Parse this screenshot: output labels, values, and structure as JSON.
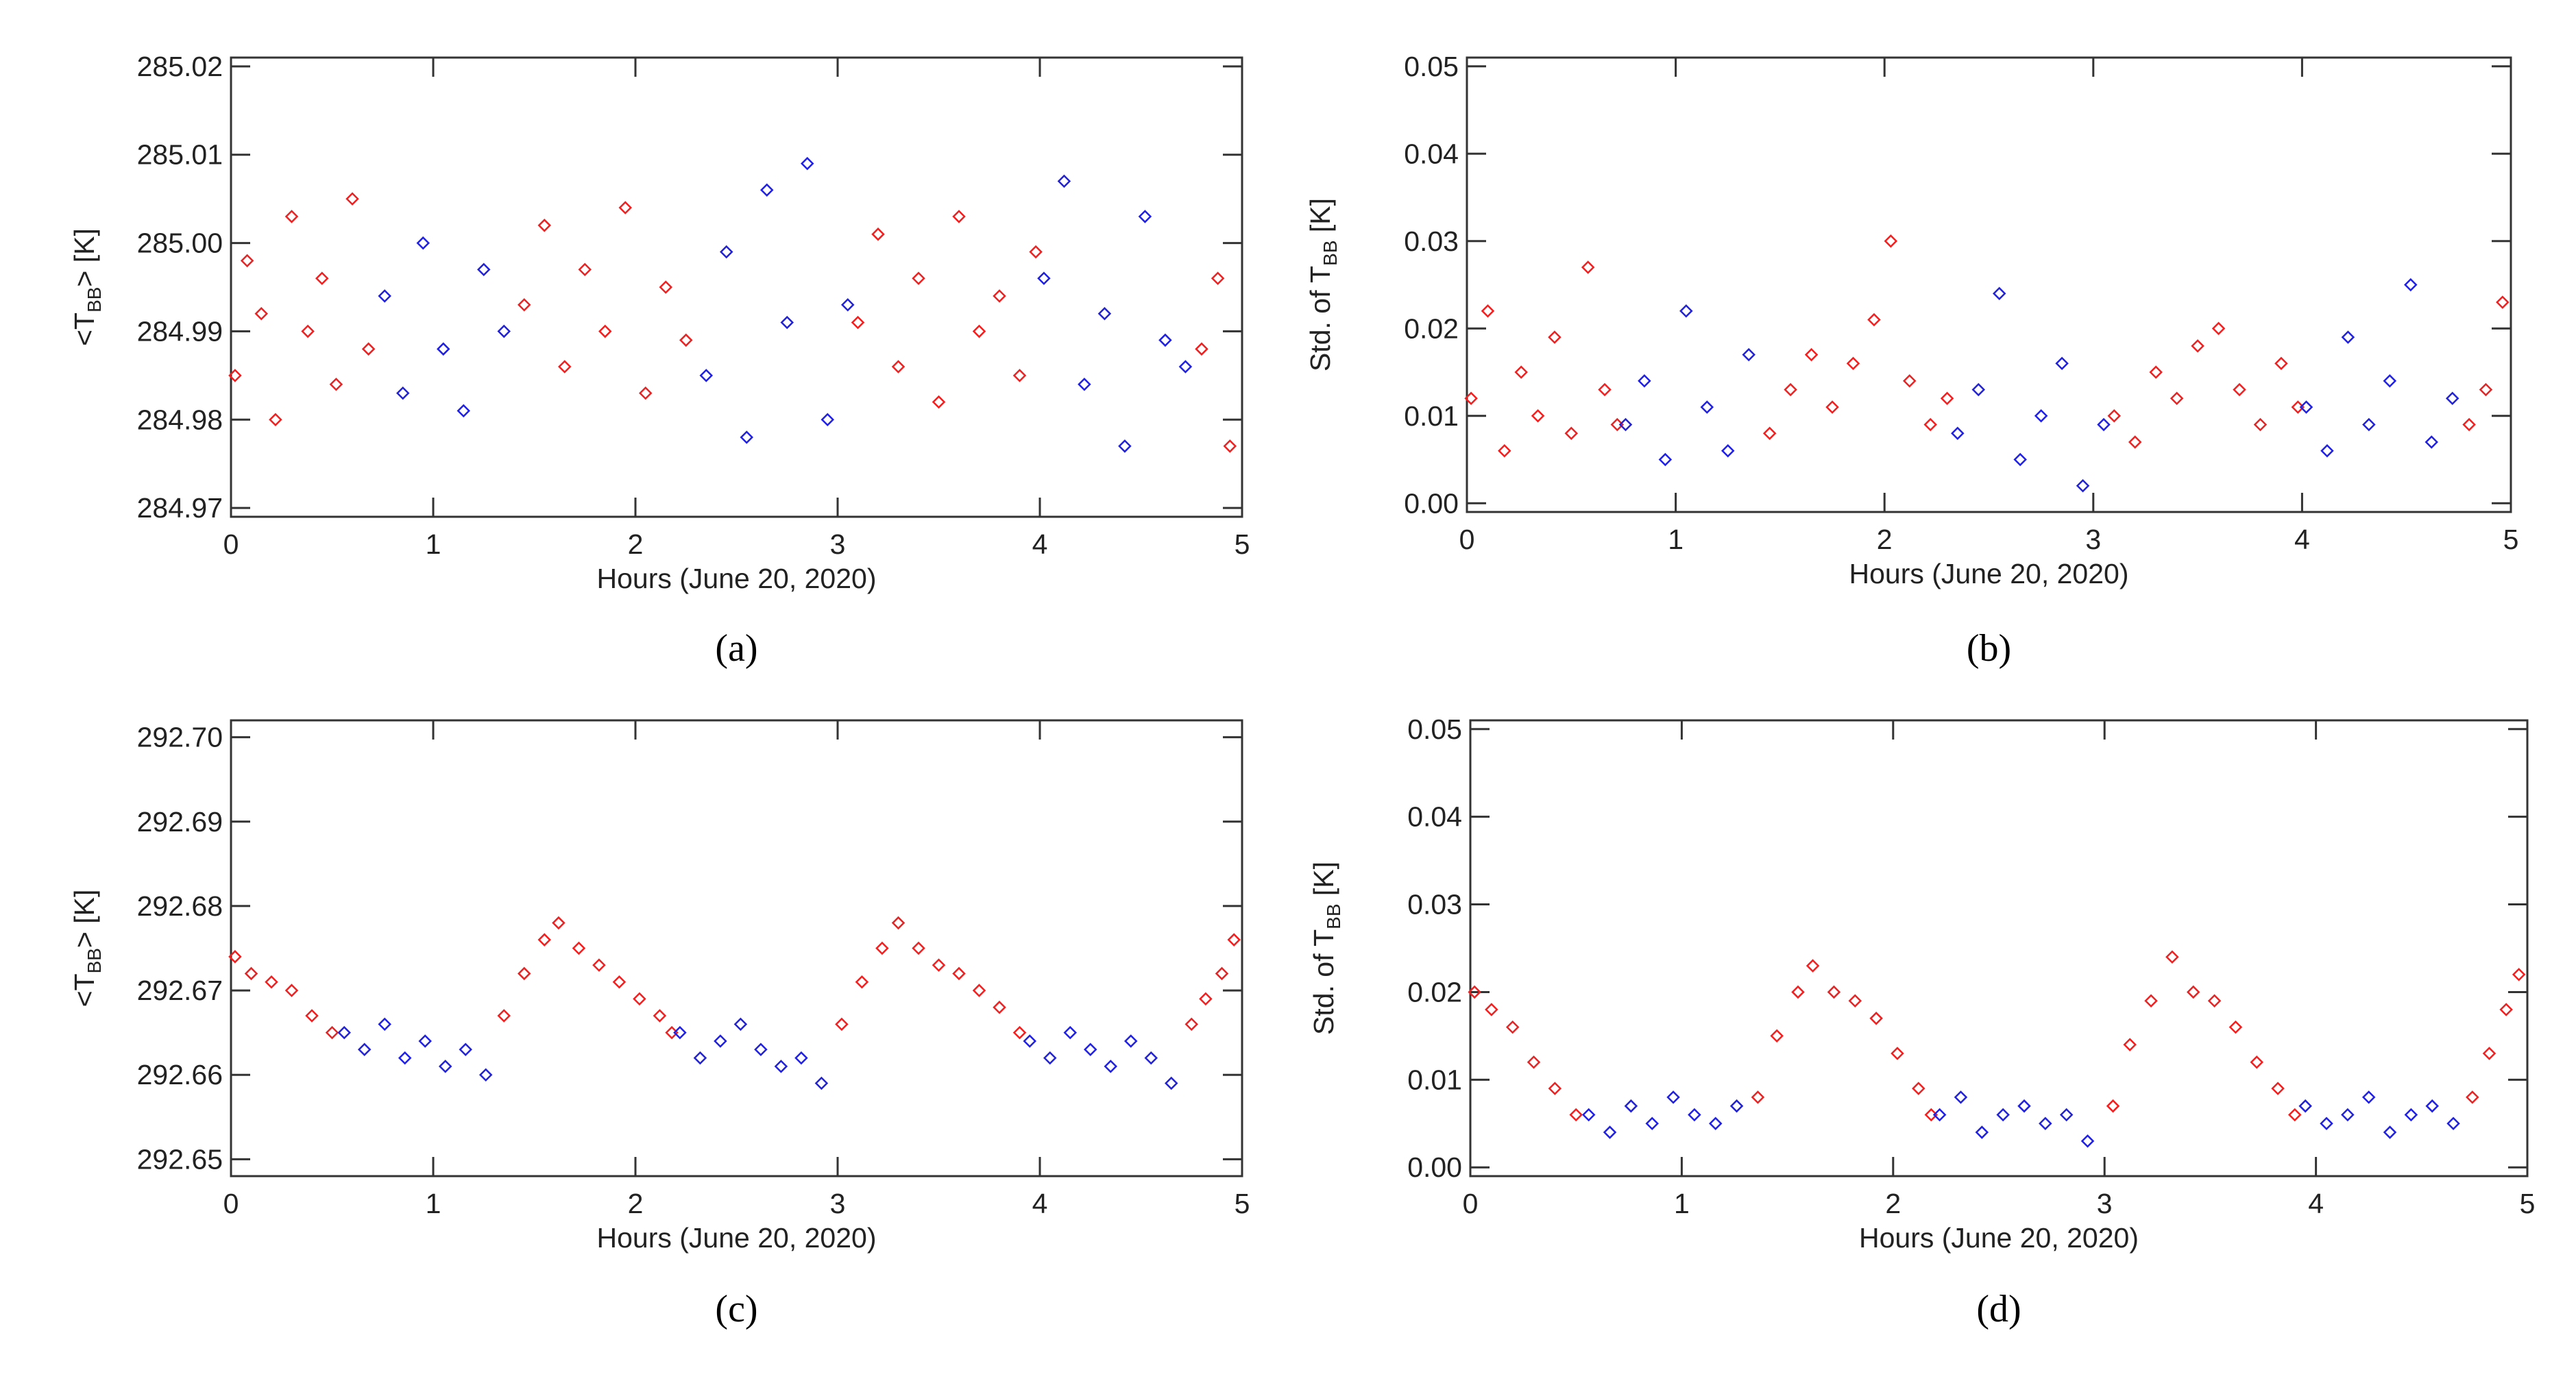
{
  "chart_data": [
    {
      "type": "scatter",
      "caption": "(a)",
      "x_label": "Hours (June 20, 2020)",
      "y_label_parts": [
        "<T",
        "BB",
        "> [K]"
      ],
      "xlim": [
        0,
        5
      ],
      "xticks": [
        0,
        1,
        2,
        3,
        4,
        5
      ],
      "ylim": [
        284.969,
        285.021
      ],
      "yticks": [
        284.97,
        284.98,
        284.99,
        {
          "value": 285,
          "label": "285.00"
        },
        285.01,
        285.02
      ],
      "series": [
        {
          "color": "#f02020",
          "x": [
            0.02,
            0.08,
            0.15,
            0.22,
            0.3,
            0.38,
            0.45,
            0.52,
            0.6,
            0.68,
            1.45,
            1.55,
            1.65,
            1.75,
            1.85,
            1.95,
            2.05,
            2.15,
            2.25,
            3.1,
            3.2,
            3.3,
            3.4,
            3.5,
            3.6,
            3.7,
            3.8,
            3.9,
            3.98,
            4.8,
            4.88,
            4.94
          ],
          "values": [
            284.985,
            284.998,
            284.992,
            284.98,
            285.003,
            284.99,
            284.996,
            284.984,
            285.005,
            284.988,
            284.993,
            285.002,
            284.986,
            284.997,
            284.99,
            285.004,
            284.983,
            284.995,
            284.989,
            284.991,
            285.001,
            284.986,
            284.996,
            284.982,
            285.003,
            284.99,
            284.994,
            284.985,
            284.999,
            284.988,
            284.996,
            284.977
          ]
        },
        {
          "color": "#2020e0",
          "x": [
            0.76,
            0.85,
            0.95,
            1.05,
            1.15,
            1.25,
            1.35,
            2.35,
            2.45,
            2.55,
            2.65,
            2.75,
            2.85,
            2.95,
            3.05,
            4.02,
            4.12,
            4.22,
            4.32,
            4.42,
            4.52,
            4.62,
            4.72
          ],
          "values": [
            284.994,
            284.983,
            285.0,
            284.988,
            284.981,
            284.997,
            284.99,
            284.985,
            284.999,
            284.978,
            285.006,
            284.991,
            285.009,
            284.98,
            284.993,
            284.996,
            285.007,
            284.984,
            284.992,
            284.977,
            285.003,
            284.989,
            284.986
          ]
        }
      ]
    },
    {
      "type": "scatter",
      "caption": "(b)",
      "x_label": "Hours (June 20, 2020)",
      "y_label_parts": [
        "Std. of T",
        "BB",
        " [K]"
      ],
      "xlim": [
        0,
        5
      ],
      "xticks": [
        0,
        1,
        2,
        3,
        4,
        5
      ],
      "ylim": [
        -0.001,
        0.051
      ],
      "yticks": [
        {
          "value": 0,
          "label": "0.00"
        },
        0.01,
        0.02,
        0.03,
        0.04,
        0.05
      ],
      "series": [
        {
          "color": "#f02020",
          "x": [
            0.02,
            0.1,
            0.18,
            0.26,
            0.34,
            0.42,
            0.5,
            0.58,
            0.66,
            0.72,
            1.45,
            1.55,
            1.65,
            1.75,
            1.85,
            1.95,
            2.03,
            2.12,
            2.22,
            2.3,
            3.1,
            3.2,
            3.3,
            3.4,
            3.5,
            3.6,
            3.7,
            3.8,
            3.9,
            3.98,
            4.8,
            4.88,
            4.96
          ],
          "values": [
            0.012,
            0.022,
            0.006,
            0.015,
            0.01,
            0.019,
            0.008,
            0.027,
            0.013,
            0.009,
            0.008,
            0.013,
            0.017,
            0.011,
            0.016,
            0.021,
            0.03,
            0.014,
            0.009,
            0.012,
            0.01,
            0.007,
            0.015,
            0.012,
            0.018,
            0.02,
            0.013,
            0.009,
            0.016,
            0.011,
            0.009,
            0.013,
            0.023
          ]
        },
        {
          "color": "#2020e0",
          "x": [
            0.76,
            0.85,
            0.95,
            1.05,
            1.15,
            1.25,
            1.35,
            2.35,
            2.45,
            2.55,
            2.65,
            2.75,
            2.85,
            2.95,
            3.05,
            4.02,
            4.12,
            4.22,
            4.32,
            4.42,
            4.52,
            4.62,
            4.72
          ],
          "values": [
            0.009,
            0.014,
            0.005,
            0.022,
            0.011,
            0.006,
            0.017,
            0.008,
            0.013,
            0.024,
            0.005,
            0.01,
            0.016,
            0.002,
            0.009,
            0.011,
            0.006,
            0.019,
            0.009,
            0.014,
            0.025,
            0.007,
            0.012
          ]
        }
      ]
    },
    {
      "type": "scatter",
      "caption": "(c)",
      "x_label": "Hours (June 20, 2020)",
      "y_label_parts": [
        "<T",
        "BB",
        "> [K]"
      ],
      "xlim": [
        0,
        5
      ],
      "xticks": [
        0,
        1,
        2,
        3,
        4,
        5
      ],
      "ylim": [
        292.648,
        292.702
      ],
      "yticks": [
        292.65,
        292.66,
        292.67,
        292.68,
        292.69,
        {
          "value": 292.7,
          "label": "292.70"
        }
      ],
      "series": [
        {
          "color": "#f02020",
          "x": [
            0.02,
            0.1,
            0.2,
            0.3,
            0.4,
            0.5,
            1.35,
            1.45,
            1.55,
            1.62,
            1.72,
            1.82,
            1.92,
            2.02,
            2.12,
            2.18,
            3.02,
            3.12,
            3.22,
            3.3,
            3.4,
            3.5,
            3.6,
            3.7,
            3.8,
            3.9,
            4.75,
            4.82,
            4.9,
            4.96
          ],
          "values": [
            292.674,
            292.672,
            292.671,
            292.67,
            292.667,
            292.665,
            292.667,
            292.672,
            292.676,
            292.678,
            292.675,
            292.673,
            292.671,
            292.669,
            292.667,
            292.665,
            292.666,
            292.671,
            292.675,
            292.678,
            292.675,
            292.673,
            292.672,
            292.67,
            292.668,
            292.665,
            292.666,
            292.669,
            292.672,
            292.676
          ]
        },
        {
          "color": "#2020e0",
          "x": [
            0.56,
            0.66,
            0.76,
            0.86,
            0.96,
            1.06,
            1.16,
            1.26,
            2.22,
            2.32,
            2.42,
            2.52,
            2.62,
            2.72,
            2.82,
            2.92,
            3.95,
            4.05,
            4.15,
            4.25,
            4.35,
            4.45,
            4.55,
            4.65
          ],
          "values": [
            292.665,
            292.663,
            292.666,
            292.662,
            292.664,
            292.661,
            292.663,
            292.66,
            292.665,
            292.662,
            292.664,
            292.666,
            292.663,
            292.661,
            292.662,
            292.659,
            292.664,
            292.662,
            292.665,
            292.663,
            292.661,
            292.664,
            292.662,
            292.659
          ]
        }
      ]
    },
    {
      "type": "scatter",
      "caption": "(d)",
      "x_label": "Hours (June 20, 2020)",
      "y_label_parts": [
        "Std. of T",
        "BB",
        " [K]"
      ],
      "xlim": [
        0,
        5
      ],
      "xticks": [
        0,
        1,
        2,
        3,
        4,
        5
      ],
      "ylim": [
        -0.001,
        0.051
      ],
      "yticks": [
        {
          "value": 0,
          "label": "0.00"
        },
        0.01,
        0.02,
        0.03,
        0.04,
        0.05
      ],
      "series": [
        {
          "color": "#f02020",
          "x": [
            0.02,
            0.1,
            0.2,
            0.3,
            0.4,
            0.5,
            1.36,
            1.45,
            1.55,
            1.62,
            1.72,
            1.82,
            1.92,
            2.02,
            2.12,
            2.18,
            3.04,
            3.12,
            3.22,
            3.32,
            3.42,
            3.52,
            3.62,
            3.72,
            3.82,
            3.9,
            4.74,
            4.82,
            4.9,
            4.96
          ],
          "values": [
            0.02,
            0.018,
            0.016,
            0.012,
            0.009,
            0.006,
            0.008,
            0.015,
            0.02,
            0.023,
            0.02,
            0.019,
            0.017,
            0.013,
            0.009,
            0.006,
            0.007,
            0.014,
            0.019,
            0.024,
            0.02,
            0.019,
            0.016,
            0.012,
            0.009,
            0.006,
            0.008,
            0.013,
            0.018,
            0.022
          ]
        },
        {
          "color": "#2020e0",
          "x": [
            0.56,
            0.66,
            0.76,
            0.86,
            0.96,
            1.06,
            1.16,
            1.26,
            2.22,
            2.32,
            2.42,
            2.52,
            2.62,
            2.72,
            2.82,
            2.92,
            3.95,
            4.05,
            4.15,
            4.25,
            4.35,
            4.45,
            4.55,
            4.65
          ],
          "values": [
            0.006,
            0.004,
            0.007,
            0.005,
            0.008,
            0.006,
            0.005,
            0.007,
            0.006,
            0.008,
            0.004,
            0.006,
            0.007,
            0.005,
            0.006,
            0.003,
            0.007,
            0.005,
            0.006,
            0.008,
            0.004,
            0.006,
            0.007,
            0.005
          ]
        }
      ]
    }
  ]
}
